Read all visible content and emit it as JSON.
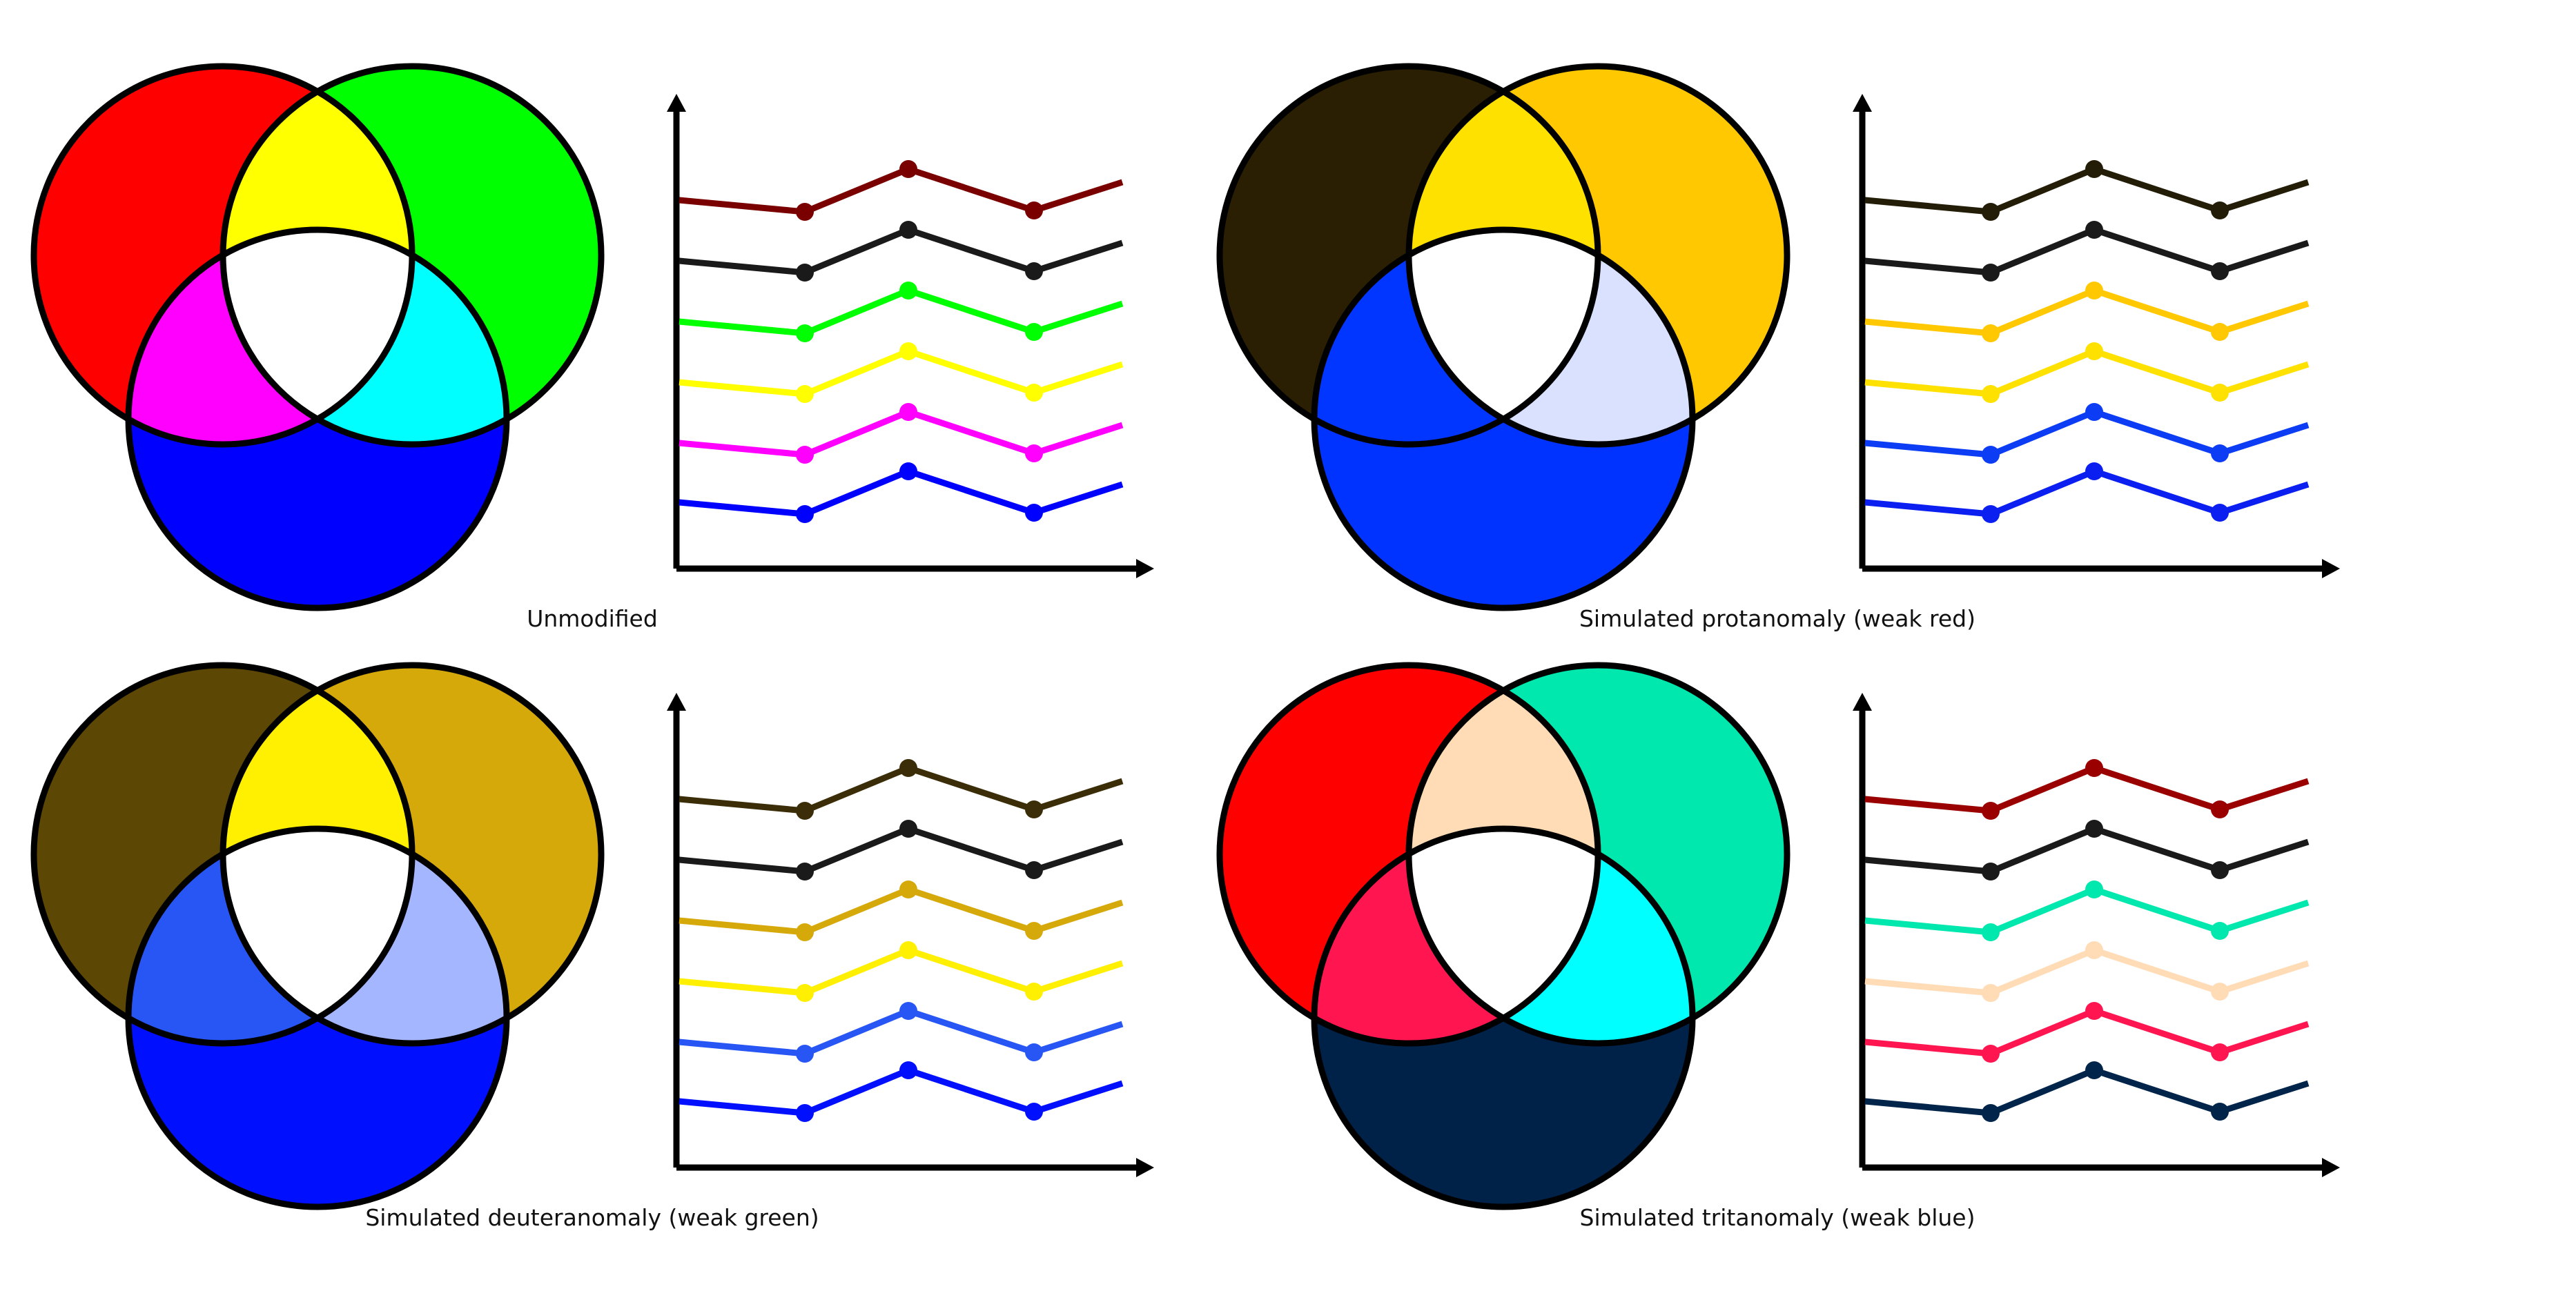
{
  "panels": [
    {
      "caption": "Unmodified",
      "venn": {
        "a": "#ff0000",
        "b": "#00ff00",
        "c": "#0000ff",
        "ab": "#ffff00",
        "ac": "#ff00ff",
        "bc": "#00ffff",
        "abc": "#ffffff"
      },
      "series_colors": [
        "#7a0000",
        "#1a1a1a",
        "#00ff00",
        "#ffff00",
        "#ff00ff",
        "#0000ff"
      ]
    },
    {
      "caption": "Simulated protanomaly (weak red)",
      "venn": {
        "a": "#2a1f02",
        "b": "#ffc800",
        "c": "#0033ff",
        "ab": "#ffe100",
        "ac": "#0036ff",
        "bc": "#d9e1ff",
        "abc": "#ffffff"
      },
      "series_colors": [
        "#231c06",
        "#1a1a1a",
        "#ffc800",
        "#ffe100",
        "#0d3cf5",
        "#0a1ff0"
      ]
    },
    {
      "caption": "Simulated deuteranomaly (weak green)",
      "venn": {
        "a": "#5c4704",
        "b": "#d6a90b",
        "c": "#0010ff",
        "ab": "#ffef00",
        "ac": "#2856f5",
        "bc": "#a3b6ff",
        "abc": "#ffffff"
      },
      "series_colors": [
        "#3a2d08",
        "#1a1a1a",
        "#d6a90b",
        "#ffef00",
        "#2856f5",
        "#0010ff"
      ]
    },
    {
      "caption": "Simulated tritanomaly (weak blue)",
      "venn": {
        "a": "#ff0000",
        "b": "#00e8ad",
        "c": "#002248",
        "ab": "#ffdcb5",
        "ac": "#ff1650",
        "bc": "#00ffff",
        "abc": "#ffffff"
      },
      "series_colors": [
        "#9a0000",
        "#1a1a1a",
        "#00e8ad",
        "#ffdcb5",
        "#ff1650",
        "#00244a"
      ]
    }
  ],
  "outline_color": "#000000"
}
